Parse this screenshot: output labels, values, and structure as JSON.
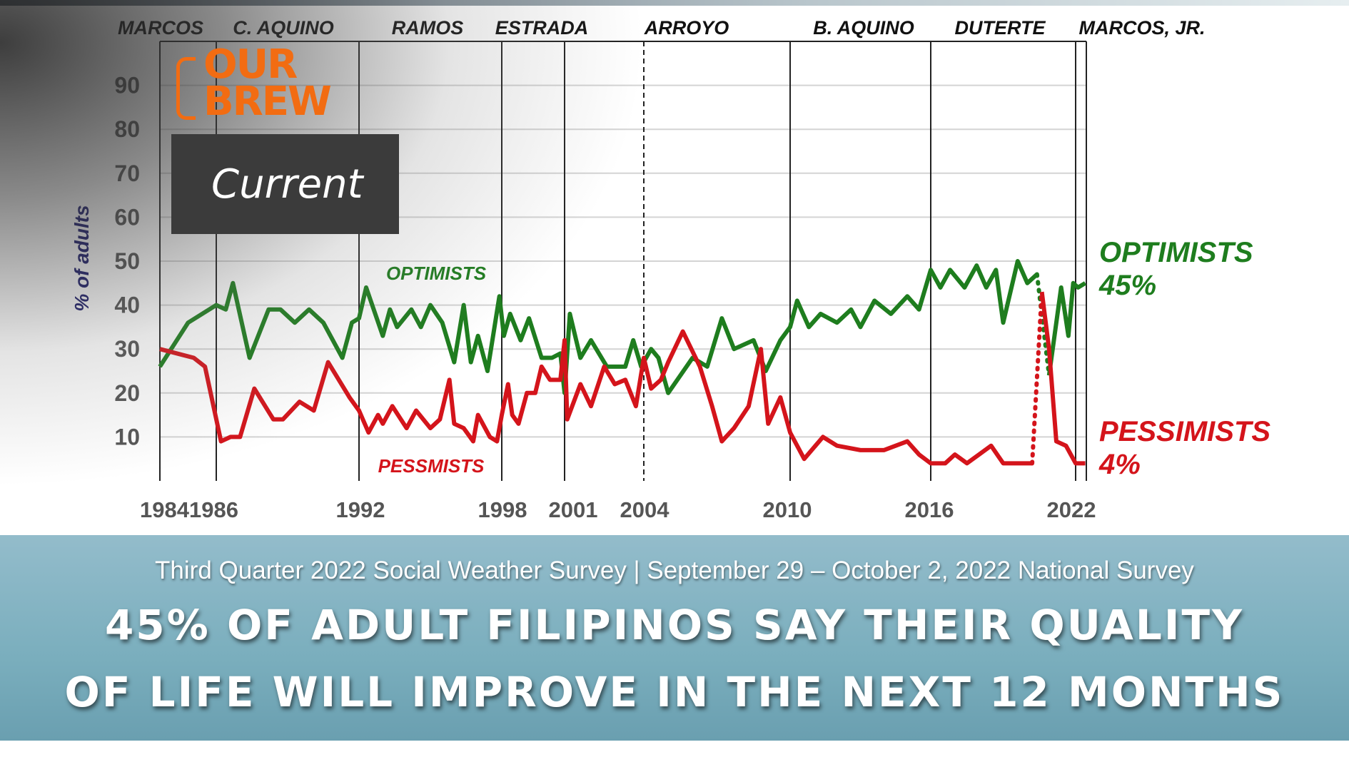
{
  "chart_data": {
    "type": "line",
    "ylabel": "% of adults",
    "ylim": [
      0,
      100
    ],
    "yticks": [
      10,
      20,
      30,
      40,
      50,
      60,
      70,
      80,
      90
    ],
    "xlim": [
      1984,
      2022.4
    ],
    "xtick_labels": [
      "19841986",
      "1992",
      "1998",
      "2001",
      "2004",
      "2010",
      "2016",
      "2022"
    ],
    "grid": true,
    "administrations": [
      {
        "label": "MARCOS",
        "start": 1984
      },
      {
        "label": "C. AQUINO",
        "start": 1986
      },
      {
        "label": "RAMOS",
        "start": 1992
      },
      {
        "label": "ESTRADA",
        "start": 1998
      },
      {
        "label": "ARROYO",
        "start": 2001
      },
      {
        "label": "B. AQUINO",
        "start": 2010
      },
      {
        "label": "DUTERTE",
        "start": 2016
      },
      {
        "label": "MARCOS, JR.",
        "start": 2022
      }
    ],
    "divider_years": [
      1986,
      1992,
      1998,
      2001,
      2010,
      2016,
      2022
    ],
    "dashed_divider_years": [
      2004
    ],
    "series": [
      {
        "name": "OPTIMISTS",
        "color": "#1e7d1e",
        "end_label": "OPTIMISTS",
        "end_value_label": "45%",
        "dotted_between": [
          2020.4,
          2020.9
        ],
        "x": [
          1984,
          1985,
          1986,
          1986.4,
          1986.7,
          1987.4,
          1988.2,
          1988.7,
          1989.3,
          1989.9,
          1990.5,
          1991.3,
          1991.7,
          1992.0,
          1992.3,
          1993.0,
          1993.3,
          1993.6,
          1994.2,
          1994.6,
          1995.0,
          1995.5,
          1996.0,
          1996.4,
          1996.7,
          1997.0,
          1997.4,
          1997.9,
          1998.1,
          1998.4,
          1998.9,
          1999.3,
          1999.9,
          2000.4,
          2000.8,
          2001.0,
          2001.2,
          2001.6,
          2002.0,
          2002.6,
          2003.3,
          2003.6,
          2003.9,
          2004.3,
          2004.6,
          2005.0,
          2006.0,
          2006.6,
          2007.2,
          2007.7,
          2008.5,
          2009.0,
          2009.6,
          2010.0,
          2010.3,
          2010.8,
          2011.3,
          2012.0,
          2012.6,
          2013.0,
          2013.6,
          2014.3,
          2015.0,
          2015.5,
          2016.0,
          2016.4,
          2016.8,
          2017.4,
          2017.9,
          2018.3,
          2018.7,
          2019.0,
          2019.6,
          2020.0,
          2020.4,
          2020.9,
          2021.1,
          2021.4,
          2021.7,
          2021.9,
          2022.1,
          2022.4
        ],
        "y": [
          26,
          36,
          40,
          39,
          45,
          28,
          39,
          39,
          36,
          39,
          36,
          28,
          36,
          37,
          44,
          33,
          39,
          35,
          39,
          35,
          40,
          36,
          27,
          40,
          27,
          33,
          25,
          42,
          33,
          38,
          32,
          37,
          28,
          28,
          29,
          20,
          38,
          28,
          32,
          26,
          26,
          32,
          26,
          30,
          28,
          20,
          28,
          26,
          37,
          30,
          32,
          25,
          32,
          35,
          41,
          35,
          38,
          36,
          39,
          35,
          41,
          38,
          42,
          39,
          48,
          44,
          48,
          44,
          49,
          44,
          48,
          36,
          50,
          45,
          47,
          24,
          32,
          44,
          33,
          45,
          44,
          45
        ]
      },
      {
        "name": "PESSMISTS",
        "color": "#d4141b",
        "end_label": "PESSIMISTS",
        "end_value_label": "4%",
        "dotted_between": [
          2020.2,
          2020.6
        ],
        "x": [
          1984,
          1985.2,
          1985.6,
          1986.2,
          1986.6,
          1987.0,
          1987.6,
          1988.4,
          1988.8,
          1989.5,
          1990.1,
          1990.7,
          1991.6,
          1992.0,
          1992.4,
          1992.8,
          1993.0,
          1993.4,
          1994.0,
          1994.4,
          1995.0,
          1995.4,
          1995.8,
          1996.0,
          1996.4,
          1996.8,
          1997.0,
          1997.5,
          1997.8,
          1998.0,
          1998.3,
          1998.5,
          1998.8,
          1999.2,
          1999.6,
          1999.9,
          2000.3,
          2000.8,
          2001.0,
          2001.1,
          2001.6,
          2002.0,
          2002.5,
          2002.9,
          2003.3,
          2003.7,
          2004.0,
          2004.3,
          2004.7,
          2005.0,
          2005.6,
          2006.3,
          2006.8,
          2007.2,
          2007.7,
          2008.3,
          2008.8,
          2009.1,
          2009.6,
          2010.0,
          2010.6,
          2011.4,
          2012.0,
          2013.0,
          2014.0,
          2015.0,
          2015.5,
          2016.0,
          2016.6,
          2017.0,
          2017.5,
          2018.0,
          2018.5,
          2019.0,
          2019.8,
          2020.2,
          2020.6,
          2020.9,
          2021.2,
          2021.6,
          2022.0,
          2022.4
        ],
        "y": [
          30,
          28,
          26,
          9,
          10,
          10,
          21,
          14,
          14,
          18,
          16,
          27,
          19,
          16,
          11,
          15,
          13,
          17,
          12,
          16,
          12,
          14,
          23,
          13,
          12,
          9,
          15,
          10,
          9,
          15,
          22,
          15,
          13,
          20,
          20,
          26,
          23,
          23,
          32,
          14,
          22,
          17,
          26,
          22,
          23,
          17,
          28,
          21,
          23,
          27,
          34,
          26,
          17,
          9,
          12,
          17,
          30,
          13,
          19,
          11,
          5,
          10,
          8,
          7,
          7,
          9,
          6,
          4,
          4,
          6,
          4,
          6,
          8,
          4,
          4,
          4,
          43,
          30,
          9,
          8,
          4,
          4
        ]
      }
    ]
  },
  "overlay": {
    "logo_text_line1": "OUR",
    "logo_text_line2": "BREW",
    "logo_color": "#f26c12",
    "category_label": "Current"
  },
  "banner": {
    "subtitle": "Third Quarter 2022 Social Weather Survey | September 29 – October 2, 2022 National Survey",
    "headline_line1": "45% OF ADULT FILIPINOS SAY THEIR QUALITY",
    "headline_line2": "OF LIFE WILL IMPROVE IN THE NEXT 12 MONTHS"
  }
}
